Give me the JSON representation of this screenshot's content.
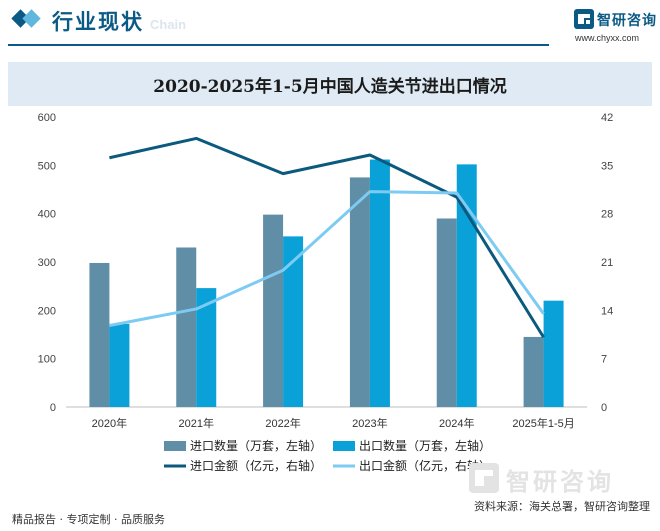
{
  "header": {
    "section_title": "行业现状",
    "watermark_en": "Chain",
    "brand_name": "智研咨询",
    "brand_url": "www.chyxx.com"
  },
  "colors": {
    "import_qty": "#5f8ea6",
    "export_qty": "#0aa1d8",
    "import_amt": "#0b5a7e",
    "export_amt": "#7dcbf2"
  },
  "chart_data": {
    "type": "bar",
    "title": "2020-2025年1-5月中国人造关节进出口情况",
    "categories": [
      "2020年",
      "2021年",
      "2022年",
      "2023年",
      "2024年",
      "2025年1-5月"
    ],
    "ylim_left": [
      0,
      600
    ],
    "yticks_left": [
      0,
      100,
      200,
      300,
      400,
      500,
      600
    ],
    "ylim_right": [
      0,
      42
    ],
    "yticks_right": [
      0,
      7,
      14,
      21,
      28,
      35,
      42
    ],
    "series": [
      {
        "name": "进口数量（万套，左轴）",
        "kind": "bar",
        "axis": "left",
        "values": [
          298,
          330,
          398,
          475,
          390,
          145
        ]
      },
      {
        "name": "出口数量（万套，左轴）",
        "kind": "bar",
        "axis": "left",
        "values": [
          172,
          246,
          353,
          512,
          502,
          220
        ]
      },
      {
        "name": "进口金额（亿元，右轴）",
        "kind": "line",
        "axis": "right",
        "values": [
          36.1,
          38.9,
          33.8,
          36.5,
          30.4,
          10.1
        ]
      },
      {
        "name": "出口金额（亿元，右轴）",
        "kind": "line",
        "axis": "right",
        "values": [
          11.8,
          14.2,
          19.8,
          31.2,
          31.0,
          13.5
        ]
      }
    ],
    "legend_position": "bottom"
  },
  "watermark": {
    "text": "智研咨询"
  },
  "footer": {
    "left": "精品报告 · 专项定制 · 品质服务",
    "right": "资料来源：海关总署，智研咨询整理"
  }
}
